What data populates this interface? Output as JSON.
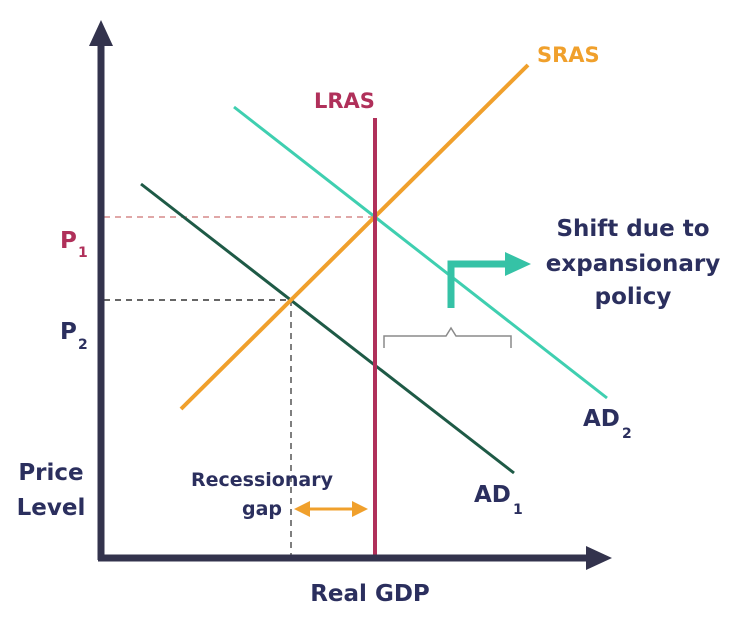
{
  "labels": {
    "sras": "SRAS",
    "lras": "LRAS",
    "p1_main": "P",
    "p1_sub": "1",
    "p2_main": "P",
    "p2_sub": "2",
    "shift_line1": "Shift due to",
    "shift_line2": "expansionary",
    "shift_line3": "policy",
    "ad2_main": "AD",
    "ad2_sub": "2",
    "ad1_main": "AD",
    "ad1_sub": "1",
    "price": "Price",
    "level": "Level",
    "recess_line1": "Recessionary",
    "recess_line2": "gap",
    "real_gdp": "Real GDP"
  },
  "colors": {
    "axis": "#33334d",
    "navy_text": "#2b2f5e",
    "lras": "#b0305a",
    "sras": "#f0a02c",
    "ad1": "#1e5a46",
    "ad2": "#3fcfb0",
    "arrow_teal": "#35c2a6",
    "guide_red": "#d58a8a",
    "guide_black": "#333333",
    "brace": "#8a8a8a",
    "gap_arrow": "#f0a02c"
  }
}
